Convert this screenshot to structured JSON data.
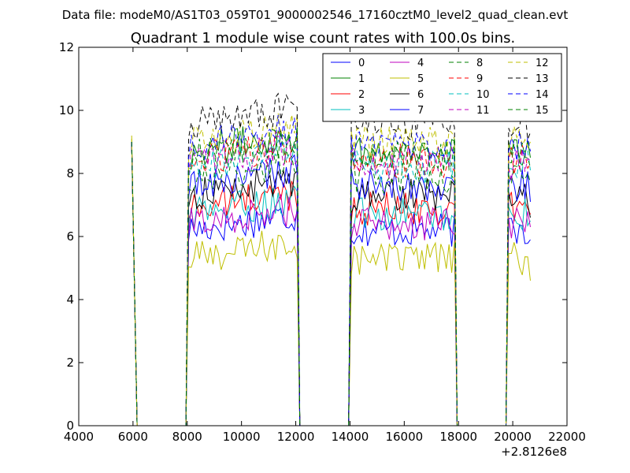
{
  "figure": {
    "suptitle": "Data file: modeM0/AS1T03_059T01_9000002546_17160cztM0_level2_quad_clean.evt",
    "x_offset_label": "+2.8126e8"
  },
  "chart_data": {
    "type": "line",
    "title": "Quadrant 1 module wise count rates with 100.0s bins.",
    "xlabel": "",
    "ylabel": "",
    "xlim": [
      4000,
      22000
    ],
    "ylim": [
      0,
      12
    ],
    "x_offset": 281260000,
    "xticks": [
      4000,
      6000,
      8000,
      10000,
      12000,
      14000,
      16000,
      18000,
      20000,
      22000
    ],
    "yticks": [
      0,
      2,
      4,
      6,
      8,
      10,
      12
    ],
    "xtick_labels": [
      "4000",
      "6000",
      "8000",
      "10000",
      "12000",
      "14000",
      "16000",
      "18000",
      "20000",
      "22000"
    ],
    "ytick_labels": [
      "0",
      "2",
      "4",
      "6",
      "8",
      "10",
      "12"
    ],
    "grid": false,
    "legend_position": "top-right",
    "legend_columns": 4,
    "bin_width": 100,
    "segments": [
      {
        "x_start": 5950,
        "x_end": 6150
      },
      {
        "x_start": 8050,
        "x_end": 12050
      },
      {
        "x_start": 14050,
        "x_end": 17850
      },
      {
        "x_start": 19850,
        "x_end": 20650
      }
    ],
    "series": [
      {
        "name": "0",
        "color": "#0000ff",
        "dash": "solid",
        "level": 6.2,
        "first_bin": 9.0,
        "last_seg_end": 5.9
      },
      {
        "name": "1",
        "color": "#008000",
        "dash": "solid",
        "level": 8.7,
        "first_bin": 9.0,
        "last_seg_end": 8.5
      },
      {
        "name": "2",
        "color": "#ff0000",
        "dash": "solid",
        "level": 6.9,
        "first_bin": 9.0,
        "last_seg_end": 6.7
      },
      {
        "name": "3",
        "color": "#00bfbf",
        "dash": "solid",
        "level": 6.7,
        "first_bin": 9.0,
        "last_seg_end": 6.5
      },
      {
        "name": "4",
        "color": "#bf00bf",
        "dash": "solid",
        "level": 6.4,
        "first_bin": 9.0,
        "last_seg_end": 6.3
      },
      {
        "name": "5",
        "color": "#bfbf00",
        "dash": "solid",
        "level": 5.3,
        "first_bin": 9.2,
        "last_seg_end": 4.6
      },
      {
        "name": "6",
        "color": "#000000",
        "dash": "solid",
        "level": 7.3,
        "first_bin": 9.0,
        "last_seg_end": 6.6
      },
      {
        "name": "7",
        "color": "#0000ff",
        "dash": "solid",
        "level": 7.6,
        "first_bin": 9.0,
        "last_seg_end": 7.1
      },
      {
        "name": "8",
        "color": "#008000",
        "dash": "dashed",
        "level": 7.9,
        "first_bin": 9.0,
        "last_seg_end": 7.7
      },
      {
        "name": "9",
        "color": "#ff0000",
        "dash": "dashed",
        "level": 8.4,
        "first_bin": 9.0,
        "last_seg_end": 8.3
      },
      {
        "name": "10",
        "color": "#00bfbf",
        "dash": "dashed",
        "level": 8.2,
        "first_bin": 9.0,
        "last_seg_end": 8.1
      },
      {
        "name": "11",
        "color": "#bf00bf",
        "dash": "dashed",
        "level": 8.3,
        "first_bin": 9.0,
        "last_seg_end": 8.4
      },
      {
        "name": "12",
        "color": "#bfbf00",
        "dash": "dashed",
        "level": 9.0,
        "first_bin": 9.1,
        "last_seg_end": 9.0
      },
      {
        "name": "13",
        "color": "#000000",
        "dash": "dashed",
        "level": 9.6,
        "first_bin": 9.0,
        "last_seg_end": 9.3
      },
      {
        "name": "14",
        "color": "#0000ff",
        "dash": "dashed",
        "level": 8.9,
        "first_bin": 9.0,
        "last_seg_end": 8.7
      },
      {
        "name": "15",
        "color": "#008000",
        "dash": "dashed",
        "level": 8.6,
        "first_bin": 9.0,
        "last_seg_end": 8.2
      }
    ]
  }
}
